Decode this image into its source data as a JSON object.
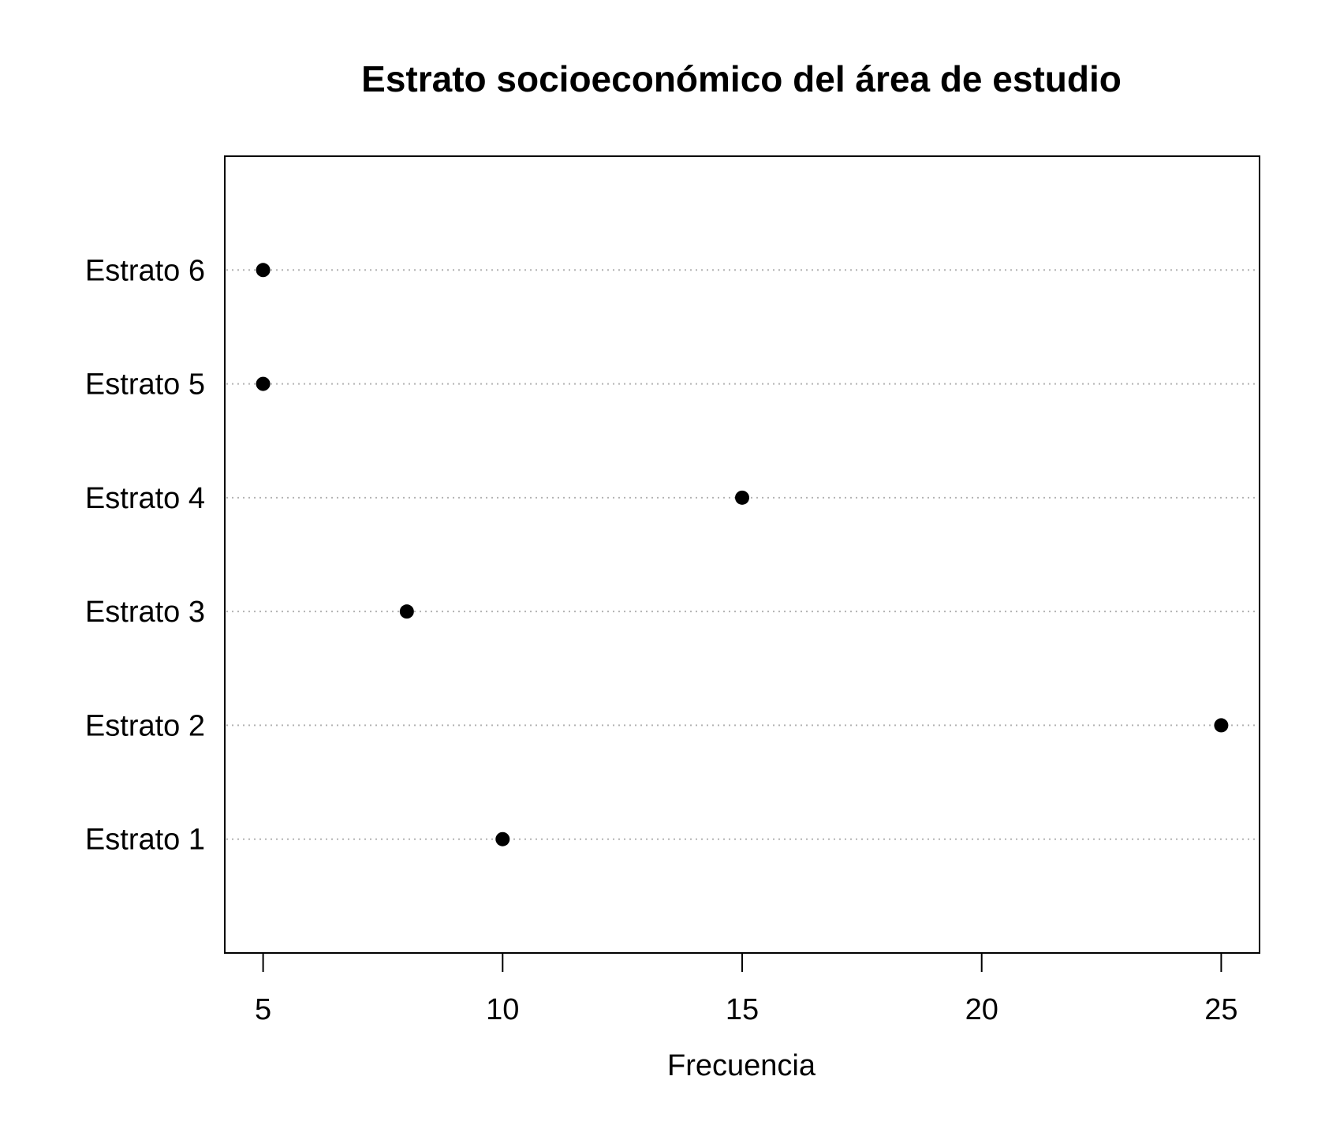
{
  "chart_data": {
    "type": "scatter",
    "subtype": "dotchart",
    "title": "Estrato socioeconómico del área de estudio",
    "xlabel": "Frecuencia",
    "ylabel": "",
    "categories": [
      "Estrato 1",
      "Estrato 2",
      "Estrato 3",
      "Estrato 4",
      "Estrato 5",
      "Estrato 6"
    ],
    "values": [
      10,
      25,
      8,
      15,
      5,
      5
    ],
    "xlim": [
      4.2,
      25.8
    ],
    "xticks": [
      5,
      10,
      15,
      20,
      25
    ],
    "grid": "dotted horizontal guide per category",
    "colors": {
      "point": "#000000",
      "guide": "#b3b3b3"
    }
  }
}
